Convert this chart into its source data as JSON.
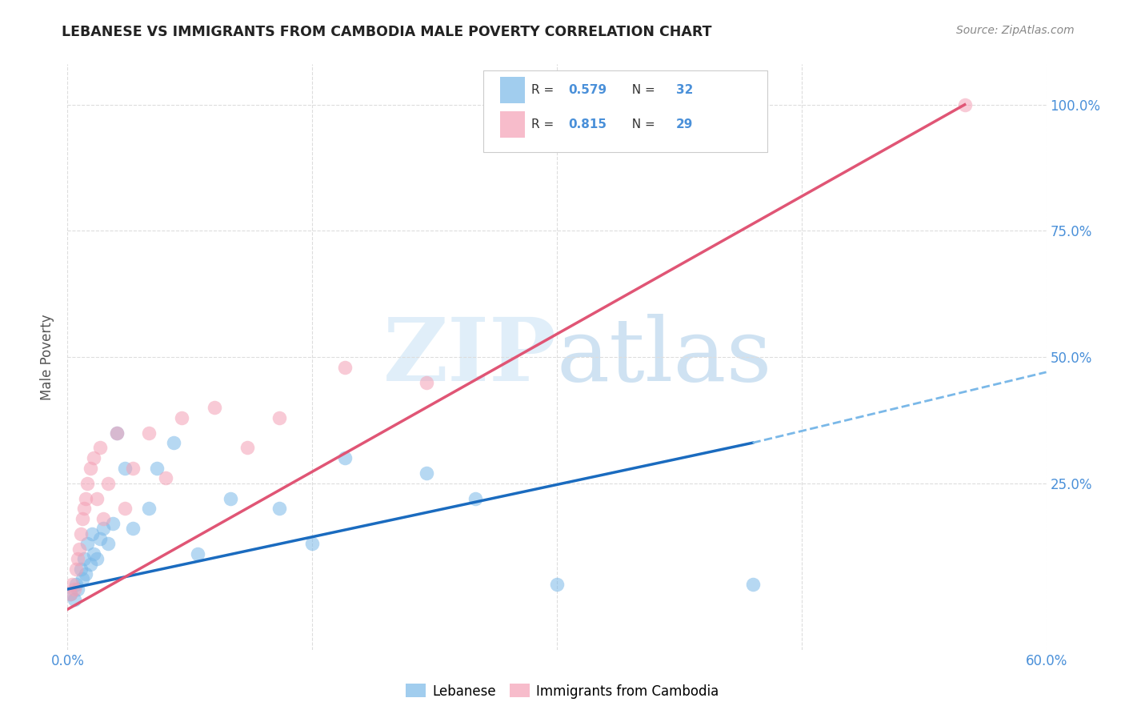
{
  "title": "LEBANESE VS IMMIGRANTS FROM CAMBODIA MALE POVERTY CORRELATION CHART",
  "source": "Source: ZipAtlas.com",
  "ylabel": "Male Poverty",
  "ytick_labels": [
    "25.0%",
    "50.0%",
    "75.0%",
    "100.0%"
  ],
  "ytick_values": [
    25,
    50,
    75,
    100
  ],
  "xlim": [
    0,
    60
  ],
  "ylim": [
    -8,
    108
  ],
  "blue_color": "#7ab8e8",
  "pink_color": "#f4a0b5",
  "trend_blue": "#1a6bbf",
  "trend_pink": "#e05575",
  "dashed_color": "#7ab8e8",
  "background": "#ffffff",
  "scatter_blue_x": [
    0.2,
    0.4,
    0.5,
    0.6,
    0.8,
    0.9,
    1.0,
    1.1,
    1.2,
    1.4,
    1.5,
    1.6,
    1.8,
    2.0,
    2.2,
    2.5,
    2.8,
    3.0,
    3.5,
    4.0,
    5.0,
    5.5,
    6.5,
    8.0,
    10.0,
    13.0,
    15.0,
    17.0,
    22.0,
    25.0,
    30.0,
    42.0
  ],
  "scatter_blue_y": [
    3,
    2,
    5,
    4,
    8,
    6,
    10,
    7,
    13,
    9,
    15,
    11,
    10,
    14,
    16,
    13,
    17,
    35,
    28,
    16,
    20,
    28,
    33,
    11,
    22,
    20,
    13,
    30,
    27,
    22,
    5,
    5
  ],
  "scatter_pink_x": [
    0.2,
    0.3,
    0.4,
    0.5,
    0.6,
    0.7,
    0.8,
    0.9,
    1.0,
    1.1,
    1.2,
    1.4,
    1.6,
    1.8,
    2.0,
    2.2,
    2.5,
    3.0,
    3.5,
    4.0,
    5.0,
    6.0,
    7.0,
    9.0,
    11.0,
    13.0,
    17.0,
    22.0,
    55.0
  ],
  "scatter_pink_y": [
    3,
    5,
    4,
    8,
    10,
    12,
    15,
    18,
    20,
    22,
    25,
    28,
    30,
    22,
    32,
    18,
    25,
    35,
    20,
    28,
    35,
    26,
    38,
    40,
    32,
    38,
    48,
    45,
    100
  ],
  "blue_trend_x0": 0,
  "blue_trend_y0": 4,
  "blue_trend_x1": 42,
  "blue_trend_y1": 33,
  "blue_trend_dash_x0": 42,
  "blue_trend_dash_y0": 33,
  "blue_trend_dash_x1": 60,
  "blue_trend_dash_y1": 47,
  "pink_trend_x0": 0,
  "pink_trend_y0": 0,
  "pink_trend_x1": 55,
  "pink_trend_y1": 100,
  "legend_r1_val": "0.579",
  "legend_n1_val": "32",
  "legend_r2_val": "0.815",
  "legend_n2_val": "29",
  "text_color": "#4a90d9",
  "title_color": "#222222",
  "source_color": "#888888"
}
